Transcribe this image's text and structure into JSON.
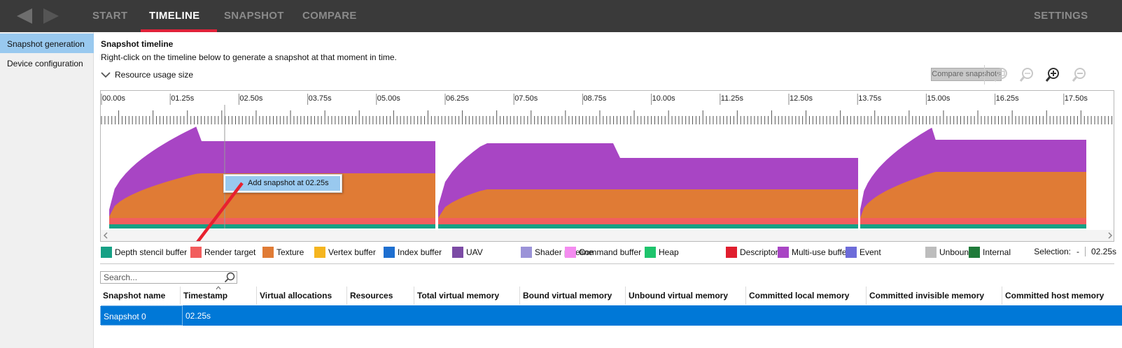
{
  "nav": {
    "tabs": [
      {
        "label": "START"
      },
      {
        "label": "TIMELINE"
      },
      {
        "label": "SNAPSHOT"
      },
      {
        "label": "COMPARE"
      }
    ],
    "settings_label": "SETTINGS",
    "back_icon": "back-arrow-icon",
    "forward_icon": "forward-arrow-icon"
  },
  "sidebar": {
    "items": [
      {
        "label": "Snapshot generation"
      },
      {
        "label": "Device configuration"
      }
    ]
  },
  "header": {
    "title": "Snapshot timeline",
    "subtitle": "Right-click on the timeline below to generate a snapshot at that moment in time.",
    "toggle_label": "Resource usage size",
    "compare_button": "Compare snapshots"
  },
  "timeline": {
    "ticks": [
      "00.00s",
      "01.25s",
      "02.50s",
      "03.75s",
      "05.00s",
      "06.25s",
      "07.50s",
      "08.75s",
      "10.00s",
      "11.25s",
      "12.50s",
      "13.75s",
      "15.00s",
      "16.25s",
      "17.50s"
    ],
    "context_menu_label": "Add snapshot at 02.25s",
    "colors": {
      "depth": "#16a085",
      "render": "#f25e5e",
      "texture": "#e07b35",
      "multi": "#a845c4"
    }
  },
  "legend": [
    {
      "label": "Depth stencil buffer",
      "color": "#16a085"
    },
    {
      "label": "Render target",
      "color": "#f25e5e"
    },
    {
      "label": "Texture",
      "color": "#e07b35"
    },
    {
      "label": "Vertex buffer",
      "color": "#f5b51f"
    },
    {
      "label": "Index buffer",
      "color": "#1e6fd0"
    },
    {
      "label": "UAV",
      "color": "#7c4ba5"
    },
    {
      "label": "Shader pipeline",
      "color": "#9b93d8"
    },
    {
      "label": "Command buffer",
      "color": "#f48cf0"
    },
    {
      "label": "Heap",
      "color": "#1ec46c"
    },
    {
      "label": "Descriptors",
      "color": "#e01e2e"
    },
    {
      "label": "Multi-use buffer",
      "color": "#a845c4"
    },
    {
      "label": "Event",
      "color": "#6d6cd9"
    },
    {
      "label": "Unbound",
      "color": "#bdbdbd"
    },
    {
      "label": "Internal",
      "color": "#1f7a3a"
    }
  ],
  "selection": {
    "label": "Selection:",
    "from": "-",
    "to": "02.25s"
  },
  "search": {
    "placeholder": "Search..."
  },
  "table": {
    "columns": [
      "Snapshot name",
      "Timestamp",
      "Virtual allocations",
      "Resources",
      "Total virtual memory",
      "Bound virtual memory",
      "Unbound virtual memory",
      "Committed local memory",
      "Committed invisible memory",
      "Committed host memory"
    ],
    "rows": [
      {
        "name": "Snapshot 0",
        "timestamp": "02.25s"
      }
    ]
  }
}
